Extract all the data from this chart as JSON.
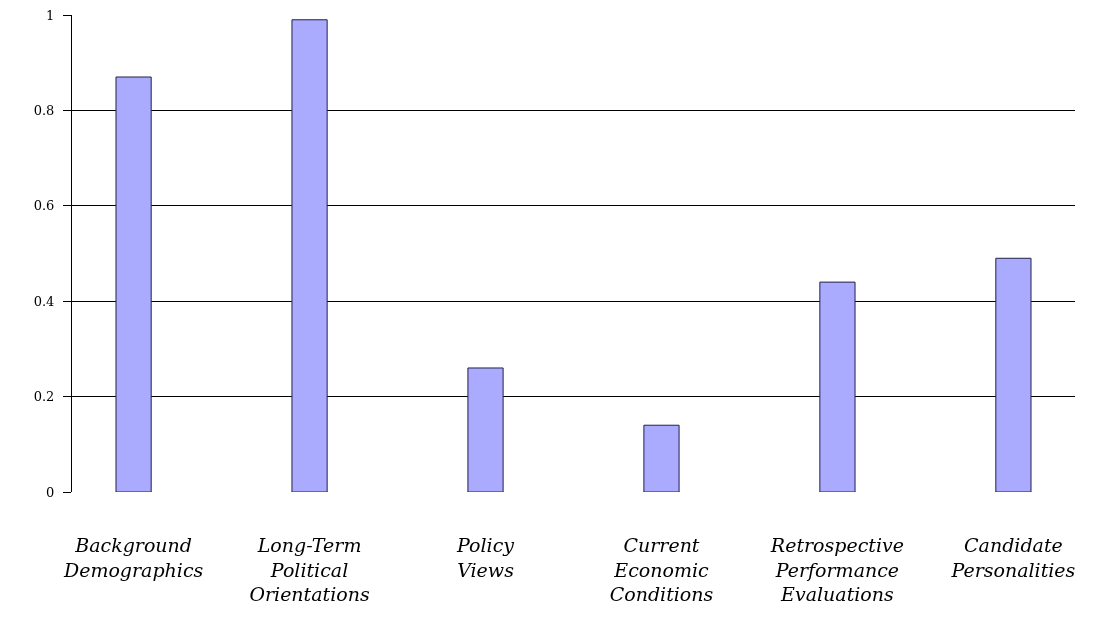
{
  "chart_data": {
    "type": "bar",
    "categories": [
      "Background Demographics",
      "Long-Term Political Orientations",
      "Policy Views",
      "Current Economic Conditions",
      "Retrospective Performance Evaluations",
      "Candidate Personalities"
    ],
    "values": [
      0.87,
      0.99,
      0.26,
      0.14,
      0.44,
      0.49
    ],
    "color": "#aaaaff",
    "ylim": [
      0,
      1
    ],
    "yticks": [
      0,
      0.2,
      0.4,
      0.6,
      0.8,
      1
    ],
    "grid": "y",
    "legend": false
  }
}
